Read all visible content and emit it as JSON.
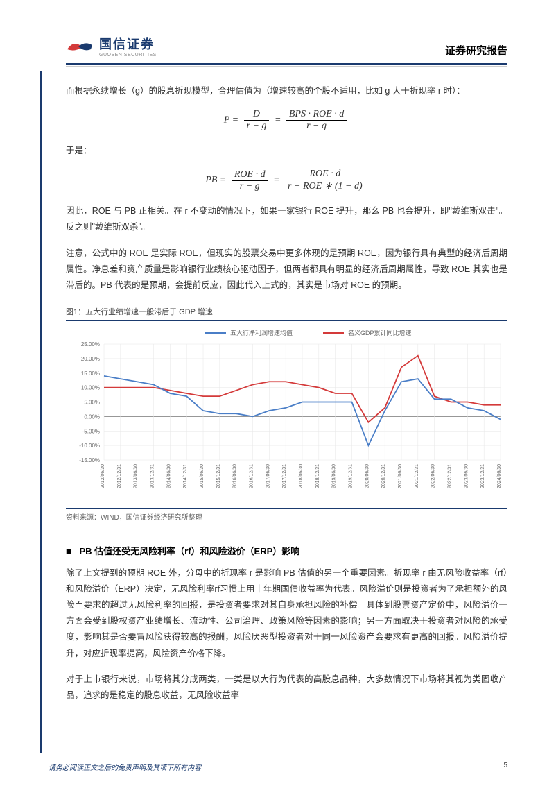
{
  "header": {
    "logo_cn": "国信证券",
    "logo_en": "GUOSEN SECURITIES",
    "report_type": "证券研究报告"
  },
  "paragraphs": {
    "p1": "而根据永续增长（g）的股息折现模型，合理估值为（增速较高的个股不适用，比如 g 大于折现率 r 时）：",
    "p2": "于是：",
    "p3": "因此，ROE 与 PB 正相关。在 r 不变动的情况下，如果一家银行 ROE 提升，那么 PB 也会提升，即\"戴维斯双击\"。反之则\"戴维斯双杀\"。",
    "p4_u": "注意，公式中的 ROE 是实际 ROE，但现实的股票交易中更多体现的是预期 ROE，因为银行具有典型的经济后周期属性。",
    "p4_rest": "净息差和资产质量是影响银行业绩核心驱动因子，但两者都具有明显的经济后周期属性，导致 ROE 其实也是滞后的。PB 代表的是预期，会提前反应，因此代入上式的，其实是市场对 ROE 的预期。",
    "p5": "除了上文提到的预期 ROE 外，分母中的折现率 r 是影响 PB 估值的另一个重要因素。折现率 r 由无风险收益率（rf）和风险溢价（ERP）决定，无风险利率rf习惯上用十年期国债收益率为代表。风险溢价则是投资者为了承担额外的风险而要求的超过无风险利率的回报，是投资者要求对其自身承担风险的补偿。具体到股票资产定价中，风险溢价一方面会受到股权资产业绩增长、流动性、公司治理、政策风险等因素的影响；另一方面取决于投资者对风险的承受度，影响其是否要冒风险获得较高的报酬，风险厌恶型投资者对于同一风险资产会要求有更高的回报。风险溢价提升，对应折现率提高，风险资产价格下降。",
    "p6_u": "对于上市银行来说，市场将其分成两类，一类是以大行为代表的高股息品种，大多数情况下市场将其视为类固收产品，追求的是稳定的股息收益，无风险收益率"
  },
  "formulas": {
    "f1": {
      "lhs": "P =",
      "n1": "D",
      "d1": "r − g",
      "eq": "=",
      "n2": "BPS · ROE · d",
      "d2": "r − g"
    },
    "f2": {
      "lhs": "PB =",
      "n1": "ROE · d",
      "d1": "r − g",
      "eq": "=",
      "n2": "ROE · d",
      "d2": "r − ROE ∗ (1 − d)"
    }
  },
  "chart": {
    "caption": "图1：五大行业绩增速一般滞后于 GDP 增速",
    "source": "资料来源：WIND，国信证券经济研究所整理",
    "legend": {
      "series1": "五大行净利润增速均值",
      "series2": "名义GDP累计同比增速"
    },
    "colors": {
      "series1": "#4a7ec7",
      "series2": "#d43a3a",
      "axis": "#888888",
      "grid": "#e6e6e6",
      "text": "#666666"
    },
    "y_axis": {
      "min": -15,
      "max": 25,
      "ticks": [
        -15,
        -10,
        -5,
        0,
        5,
        10,
        15,
        20,
        25
      ],
      "labels": [
        "-15.00%",
        "-10.00%",
        "-5.00%",
        "0.00%",
        "5.00%",
        "10.00%",
        "15.00%",
        "20.00%",
        "25.00%"
      ]
    },
    "x_labels": [
      "2012/06/30",
      "2012/12/31",
      "2013/06/30",
      "2013/12/31",
      "2014/06/30",
      "2014/12/31",
      "2015/06/30",
      "2015/12/31",
      "2016/06/30",
      "2016/12/31",
      "2017/06/30",
      "2017/12/31",
      "2018/06/30",
      "2018/12/31",
      "2019/06/30",
      "2019/12/31",
      "2020/06/30",
      "2020/12/31",
      "2021/06/30",
      "2021/12/31",
      "2022/06/30",
      "2022/12/31",
      "2023/06/30",
      "2023/12/31",
      "2024/06/30"
    ],
    "series1_data": [
      14,
      13,
      12,
      11,
      8,
      7,
      2,
      1,
      1,
      0,
      2,
      3,
      5,
      5,
      5,
      5,
      -10,
      2,
      12,
      13,
      6,
      6,
      3,
      2,
      -1
    ],
    "series2_data": [
      10,
      10,
      10,
      10,
      9,
      8,
      7,
      7,
      9,
      11,
      12,
      12,
      11,
      10,
      8,
      8,
      -2,
      3,
      17,
      21,
      7,
      5,
      5,
      4,
      4
    ]
  },
  "section2_heading": "PB 估值还受无风险利率（rf）和风险溢价（ERP）影响",
  "footer": {
    "disclaimer": "请务必阅读正文之后的免责声明及其项下所有内容",
    "page": "5"
  }
}
